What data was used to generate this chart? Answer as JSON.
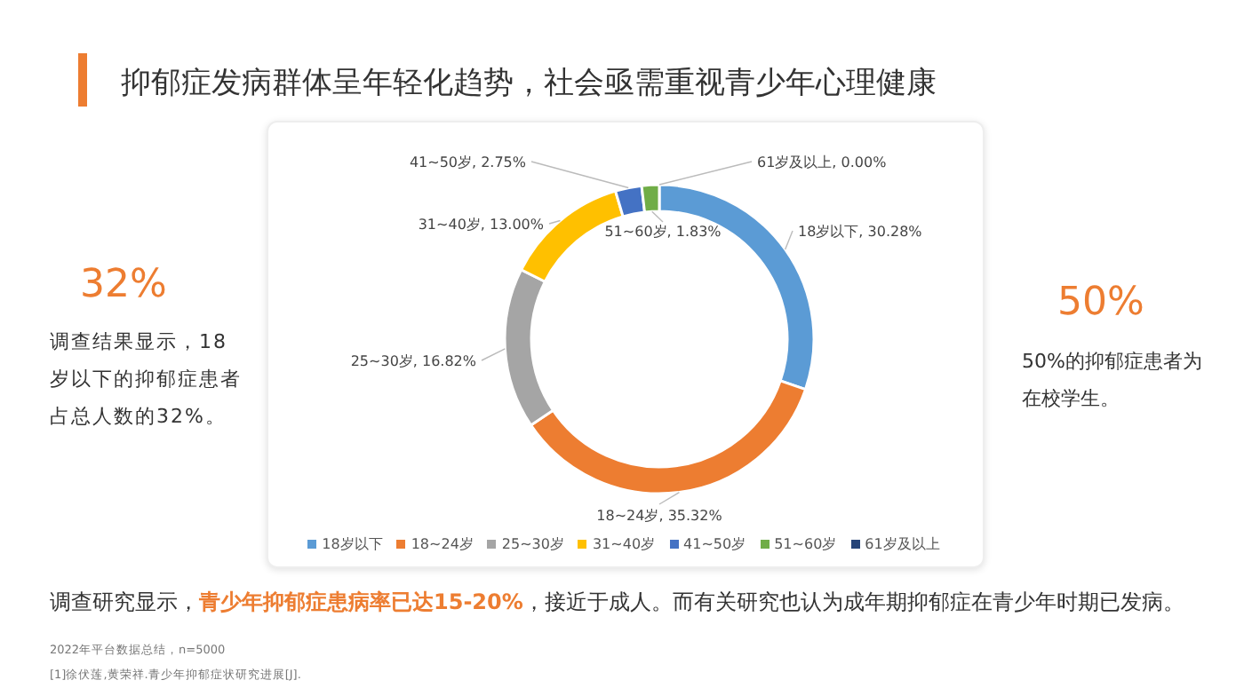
{
  "chart_data": {
    "type": "donut",
    "title": "抑郁症发病群体呈年轻化趋势，社会亟需重视青少年心理健康",
    "categories": [
      "18岁以下",
      "18~24岁",
      "25~30岁",
      "31~40岁",
      "41~50岁",
      "51~60岁",
      "61岁及以上"
    ],
    "values": [
      30.28,
      35.32,
      16.82,
      13.0,
      2.75,
      1.83,
      0.0
    ],
    "colors": [
      "#5b9bd5",
      "#ed7d31",
      "#a5a5a5",
      "#ffc000",
      "#4472c4",
      "#70ad47",
      "#264478"
    ],
    "value_labels": [
      "18岁以下, 30.28%",
      "18~24岁, 35.32%",
      "25~30岁, 16.82%",
      "31~40岁, 13.00%",
      "41~50岁, 2.75%",
      "51~60岁, 1.83%",
      "61岁及以上, 0.00%"
    ],
    "legend": "bottom",
    "annotations": [
      "32%",
      "调查结果显示，18岁以下的抑郁症患者占总人数的32%。",
      "50%",
      "50%的抑郁症患者为在校学生。",
      "调查研究显示，",
      "青少年抑郁症患病率已达15-20%",
      "，接近于成人。而有关研究也认为成年期抑郁症在青少年时期已发病。",
      "2022年平台数据总结，n=5000",
      "[1]徐伏莲,黄荣祥.青少年抑郁症状研究进展[J]."
    ]
  }
}
